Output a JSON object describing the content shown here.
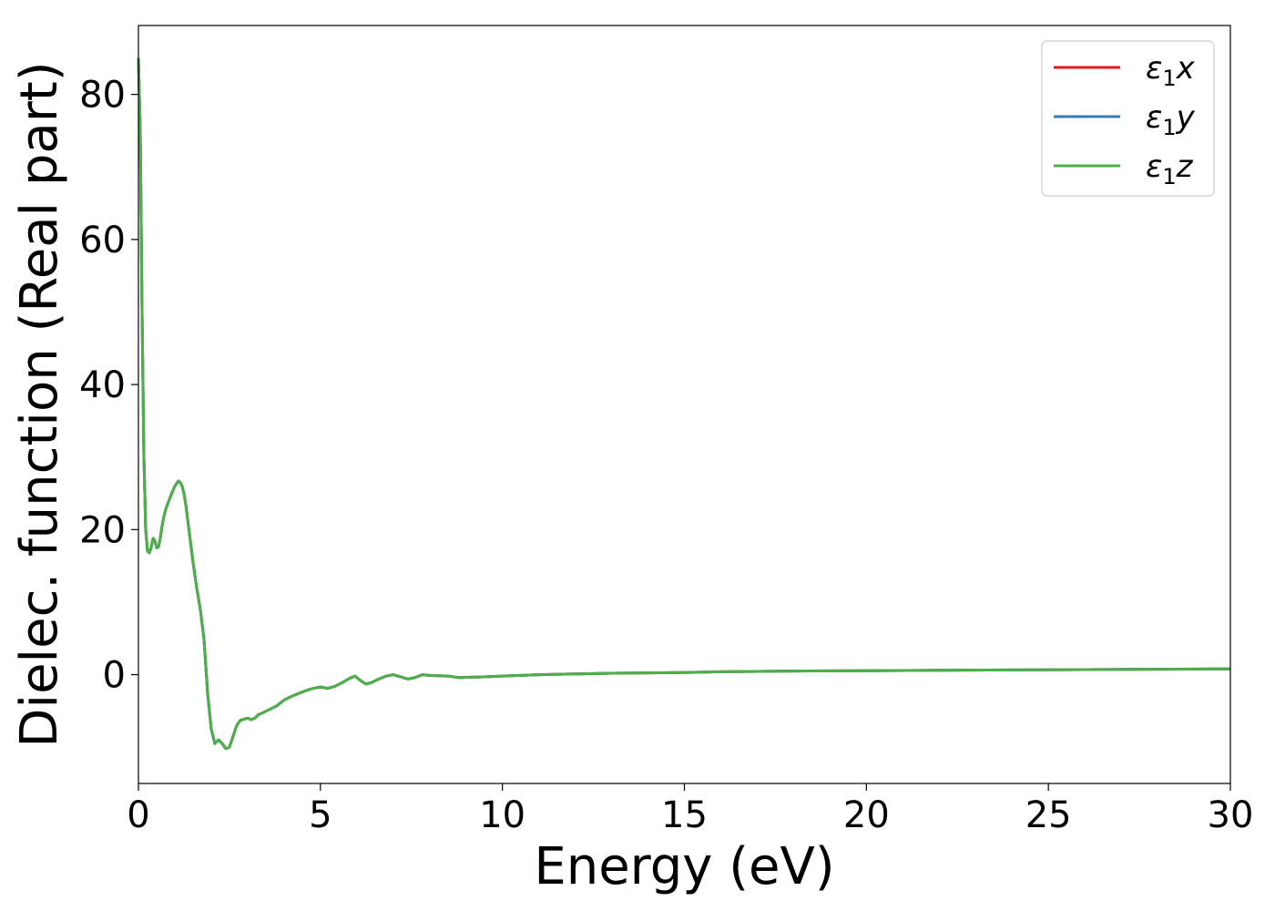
{
  "chart_data": {
    "type": "line",
    "xlabel": "Energy (eV)",
    "ylabel": "Dielec. function (Real part)",
    "xlim": [
      0,
      30
    ],
    "ylim": [
      -15,
      89.5
    ],
    "xticks": [
      0,
      5,
      10,
      15,
      20,
      25,
      30
    ],
    "xtick_labels": [
      "0",
      "5",
      "10",
      "15",
      "20",
      "25",
      "30"
    ],
    "yticks": [
      0,
      20,
      40,
      60,
      80
    ],
    "ytick_labels": [
      "0",
      "20",
      "40",
      "60",
      "80"
    ],
    "grid": false,
    "legend_position": "top-right",
    "x": [
      0.0,
      0.05,
      0.1,
      0.15,
      0.2,
      0.25,
      0.3,
      0.35,
      0.4,
      0.45,
      0.5,
      0.55,
      0.6,
      0.65,
      0.7,
      0.75,
      0.8,
      0.9,
      1.0,
      1.1,
      1.15,
      1.2,
      1.25,
      1.3,
      1.35,
      1.4,
      1.5,
      1.6,
      1.7,
      1.8,
      1.9,
      2.0,
      2.1,
      2.2,
      2.3,
      2.4,
      2.5,
      2.6,
      2.7,
      2.8,
      3.0,
      3.1,
      3.2,
      3.3,
      3.4,
      3.6,
      3.8,
      4.0,
      4.2,
      4.4,
      4.6,
      4.8,
      5.0,
      5.2,
      5.4,
      5.6,
      5.8,
      5.95,
      6.1,
      6.25,
      6.4,
      6.6,
      6.8,
      7.0,
      7.2,
      7.4,
      7.6,
      7.8,
      8.0,
      8.5,
      8.8,
      9.5,
      10.0,
      10.5,
      11.0,
      12.0,
      13.0,
      14.0,
      15.0,
      16.0,
      17.0,
      18.0,
      20.0,
      22.0,
      24.0,
      26.0,
      28.0,
      30.0
    ],
    "series": [
      {
        "name": "ε1x",
        "color": "#e41a1c",
        "values": [
          85.0,
          75.0,
          50.0,
          30.0,
          20.0,
          17.0,
          16.8,
          17.5,
          18.8,
          18.5,
          17.5,
          17.6,
          18.8,
          20.5,
          21.8,
          22.8,
          23.5,
          24.8,
          26.0,
          26.7,
          26.5,
          26.0,
          25.0,
          23.5,
          21.5,
          19.5,
          15.5,
          12.0,
          9.0,
          5.0,
          -2.5,
          -7.5,
          -9.5,
          -9.0,
          -9.5,
          -10.2,
          -10.0,
          -8.5,
          -7.0,
          -6.3,
          -6.0,
          -6.2,
          -6.0,
          -5.5,
          -5.3,
          -4.8,
          -4.3,
          -3.5,
          -3.0,
          -2.6,
          -2.2,
          -1.9,
          -1.7,
          -1.9,
          -1.6,
          -1.1,
          -0.5,
          -0.2,
          -0.8,
          -1.3,
          -1.1,
          -0.6,
          -0.2,
          0.0,
          -0.3,
          -0.6,
          -0.4,
          0.0,
          -0.1,
          -0.2,
          -0.4,
          -0.3,
          -0.2,
          -0.1,
          0.0,
          0.1,
          0.2,
          0.25,
          0.3,
          0.4,
          0.45,
          0.5,
          0.55,
          0.6,
          0.65,
          0.7,
          0.75,
          0.8
        ]
      },
      {
        "name": "ε1y",
        "color": "#377eb8",
        "values": [
          85.0,
          75.0,
          50.0,
          30.0,
          20.0,
          17.0,
          16.8,
          17.5,
          18.8,
          18.5,
          17.5,
          17.6,
          18.8,
          20.5,
          21.8,
          22.8,
          23.5,
          24.8,
          26.0,
          26.7,
          26.5,
          26.0,
          25.0,
          23.5,
          21.5,
          19.5,
          15.5,
          12.0,
          9.0,
          5.0,
          -2.5,
          -7.5,
          -9.5,
          -9.0,
          -9.5,
          -10.2,
          -10.0,
          -8.5,
          -7.0,
          -6.3,
          -6.0,
          -6.2,
          -6.0,
          -5.5,
          -5.3,
          -4.8,
          -4.3,
          -3.5,
          -3.0,
          -2.6,
          -2.2,
          -1.9,
          -1.7,
          -1.9,
          -1.6,
          -1.1,
          -0.5,
          -0.2,
          -0.8,
          -1.3,
          -1.1,
          -0.6,
          -0.2,
          0.0,
          -0.3,
          -0.6,
          -0.4,
          0.0,
          -0.1,
          -0.2,
          -0.4,
          -0.3,
          -0.2,
          -0.1,
          0.0,
          0.1,
          0.2,
          0.25,
          0.3,
          0.4,
          0.45,
          0.5,
          0.55,
          0.6,
          0.65,
          0.7,
          0.75,
          0.8
        ]
      },
      {
        "name": "ε1z",
        "color": "#4daf4a",
        "values": [
          85.0,
          75.0,
          50.0,
          30.0,
          20.0,
          17.0,
          16.8,
          17.5,
          18.8,
          18.5,
          17.5,
          17.6,
          18.8,
          20.5,
          21.8,
          22.8,
          23.5,
          24.8,
          26.0,
          26.7,
          26.5,
          26.0,
          25.0,
          23.5,
          21.5,
          19.5,
          15.5,
          12.0,
          9.0,
          5.0,
          -2.5,
          -7.5,
          -9.5,
          -9.0,
          -9.5,
          -10.2,
          -10.0,
          -8.5,
          -7.0,
          -6.3,
          -6.0,
          -6.2,
          -6.0,
          -5.5,
          -5.3,
          -4.8,
          -4.3,
          -3.5,
          -3.0,
          -2.6,
          -2.2,
          -1.9,
          -1.7,
          -1.9,
          -1.6,
          -1.1,
          -0.5,
          -0.2,
          -0.8,
          -1.3,
          -1.1,
          -0.6,
          -0.2,
          0.0,
          -0.3,
          -0.6,
          -0.4,
          0.0,
          -0.1,
          -0.2,
          -0.4,
          -0.3,
          -0.2,
          -0.1,
          0.0,
          0.1,
          0.2,
          0.25,
          0.3,
          0.4,
          0.45,
          0.5,
          0.55,
          0.6,
          0.65,
          0.7,
          0.75,
          0.8
        ]
      }
    ],
    "legend_entries": [
      {
        "base": "ε",
        "sub": "1",
        "var": "x",
        "color": "#e41a1c"
      },
      {
        "base": "ε",
        "sub": "1",
        "var": "y",
        "color": "#377eb8"
      },
      {
        "base": "ε",
        "sub": "1",
        "var": "z",
        "color": "#4daf4a"
      }
    ]
  }
}
